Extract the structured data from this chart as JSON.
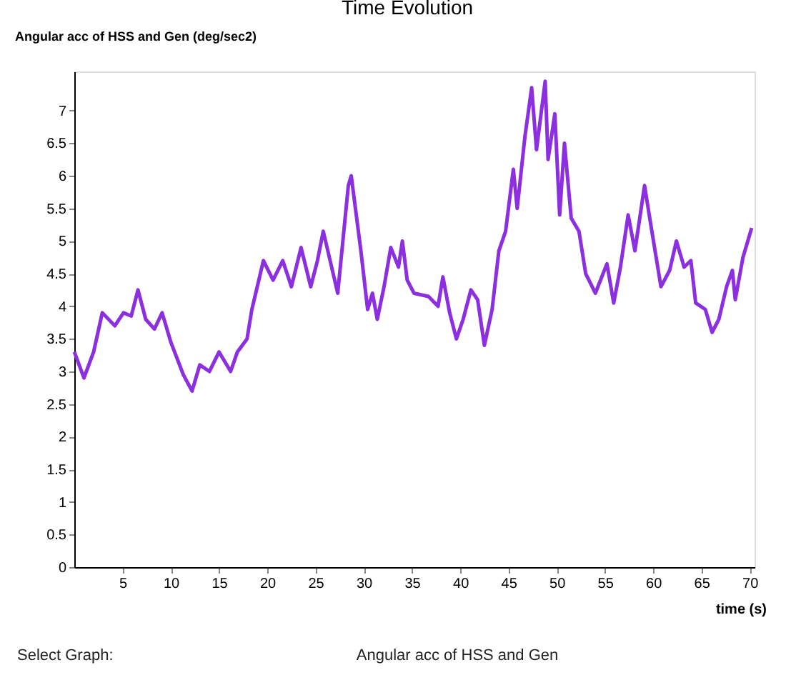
{
  "chart_data": {
    "type": "line",
    "title": "Time Evolution",
    "xlabel": "time (s)",
    "ylabel": "Angular acc of HSS and Gen (deg/sec2)",
    "x": [
      0,
      1.0,
      2.0,
      2.9,
      4.2,
      5.1,
      5.9,
      6.6,
      7.4,
      8.3,
      9.1,
      10.0,
      11.3,
      12.2,
      13.0,
      14.0,
      15.0,
      16.2,
      16.9,
      17.9,
      18.4,
      19.6,
      20.6,
      21.6,
      22.5,
      23.5,
      24.5,
      25.2,
      25.8,
      27.3,
      28.4,
      28.7,
      29.7,
      30.4,
      30.9,
      31.4,
      32.1,
      32.8,
      33.6,
      34.0,
      34.5,
      35.2,
      36.7,
      37.7,
      38.2,
      38.9,
      39.6,
      40.3,
      41.1,
      41.8,
      42.5,
      43.3,
      44.0,
      44.7,
      45.5,
      45.9,
      46.7,
      47.4,
      47.9,
      48.8,
      49.1,
      49.8,
      50.3,
      50.8,
      51.5,
      52.3,
      53.0,
      54.0,
      55.2,
      55.9,
      56.6,
      57.4,
      58.1,
      59.1,
      59.8,
      60.8,
      61.7,
      62.4,
      63.2,
      63.9,
      64.4,
      65.4,
      66.1,
      66.8,
      67.6,
      68.2,
      68.5,
      69.3,
      69.8,
      70.2
    ],
    "series": [
      {
        "color": "#8b2fe0",
        "values": [
          3.3,
          2.9,
          3.3,
          3.9,
          3.7,
          3.9,
          3.85,
          4.25,
          3.8,
          3.65,
          3.9,
          3.45,
          2.95,
          2.7,
          3.1,
          3.0,
          3.3,
          3.0,
          3.3,
          3.5,
          3.95,
          4.7,
          4.4,
          4.7,
          4.3,
          4.9,
          4.3,
          4.7,
          5.15,
          4.2,
          5.85,
          6.0,
          4.85,
          3.95,
          4.2,
          3.8,
          4.3,
          4.9,
          4.6,
          5.0,
          4.4,
          4.2,
          4.15,
          4.0,
          4.45,
          3.9,
          3.5,
          3.8,
          4.25,
          4.1,
          3.4,
          3.95,
          4.85,
          5.15,
          6.1,
          5.5,
          6.6,
          7.35,
          6.4,
          7.45,
          6.25,
          6.95,
          5.4,
          6.5,
          5.35,
          5.15,
          4.5,
          4.2,
          4.65,
          4.05,
          4.6,
          5.4,
          4.85,
          5.85,
          5.2,
          4.3,
          4.55,
          5.0,
          4.6,
          4.7,
          4.05,
          3.95,
          3.6,
          3.8,
          4.3,
          4.55,
          4.1,
          4.75,
          5.0,
          5.2
        ]
      }
    ],
    "xlim": [
      0,
      70.5
    ],
    "ylim": [
      0,
      7.6
    ],
    "xticks": [
      5,
      10,
      15,
      20,
      25,
      30,
      35,
      40,
      45,
      50,
      55,
      60,
      65,
      70
    ],
    "yticks": [
      0,
      0.5,
      1,
      1.5,
      2,
      2.5,
      3,
      3.5,
      4,
      4.5,
      5,
      5.5,
      6,
      6.5,
      7
    ],
    "grid": false,
    "marker": "none",
    "line_style": "solid",
    "annotations": [
      "Select Graph:",
      "Angular acc of HSS and Gen"
    ]
  }
}
